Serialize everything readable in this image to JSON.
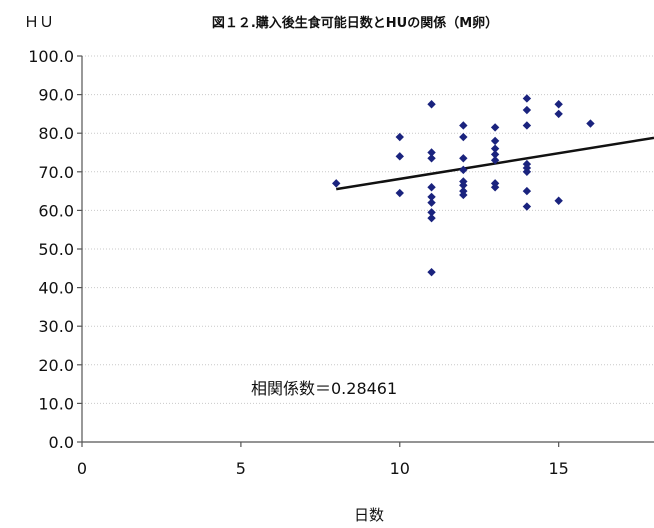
{
  "chart_data": {
    "type": "scatter",
    "title": "図１２.購入後生食可能日数とHUの関係（M卵）",
    "xlabel": "日数",
    "ylabel": "ＨＵ",
    "xlim": [
      0,
      18
    ],
    "ylim": [
      0,
      100
    ],
    "x_ticks": [
      "0",
      "5",
      "10",
      "15"
    ],
    "x_tick_values": [
      0,
      5,
      10,
      15
    ],
    "y_ticks": [
      "0.0",
      "10.0",
      "20.0",
      "30.0",
      "40.0",
      "50.0",
      "60.0",
      "70.0",
      "80.0",
      "90.0",
      "100.0"
    ],
    "y_tick_values": [
      0,
      10,
      20,
      30,
      40,
      50,
      60,
      70,
      80,
      90,
      100
    ],
    "grid": true,
    "point_color": "#1a237e",
    "annotation": "相関係数＝0.28461",
    "trendline": {
      "x": [
        8,
        18
      ],
      "y": [
        65.5,
        78.8
      ]
    },
    "points": [
      {
        "x": 8,
        "y": 67.0
      },
      {
        "x": 10,
        "y": 79.0
      },
      {
        "x": 10,
        "y": 74.0
      },
      {
        "x": 10,
        "y": 64.5
      },
      {
        "x": 11,
        "y": 87.5
      },
      {
        "x": 11,
        "y": 75.0
      },
      {
        "x": 11,
        "y": 73.5
      },
      {
        "x": 11,
        "y": 66.0
      },
      {
        "x": 11,
        "y": 63.5
      },
      {
        "x": 11,
        "y": 62.0
      },
      {
        "x": 11,
        "y": 59.5
      },
      {
        "x": 11,
        "y": 58.0
      },
      {
        "x": 11,
        "y": 44.0
      },
      {
        "x": 12,
        "y": 82.0
      },
      {
        "x": 12,
        "y": 79.0
      },
      {
        "x": 12,
        "y": 73.5
      },
      {
        "x": 12,
        "y": 70.5
      },
      {
        "x": 12,
        "y": 67.5
      },
      {
        "x": 12,
        "y": 66.5
      },
      {
        "x": 12,
        "y": 65.0
      },
      {
        "x": 12,
        "y": 64.0
      },
      {
        "x": 13,
        "y": 81.5
      },
      {
        "x": 13,
        "y": 78.0
      },
      {
        "x": 13,
        "y": 76.0
      },
      {
        "x": 13,
        "y": 74.5
      },
      {
        "x": 13,
        "y": 73.0
      },
      {
        "x": 13,
        "y": 67.0
      },
      {
        "x": 13,
        "y": 66.0
      },
      {
        "x": 14,
        "y": 89.0
      },
      {
        "x": 14,
        "y": 86.0
      },
      {
        "x": 14,
        "y": 82.0
      },
      {
        "x": 14,
        "y": 72.0
      },
      {
        "x": 14,
        "y": 71.0
      },
      {
        "x": 14,
        "y": 70.0
      },
      {
        "x": 14,
        "y": 65.0
      },
      {
        "x": 14,
        "y": 61.0
      },
      {
        "x": 15,
        "y": 87.5
      },
      {
        "x": 15,
        "y": 85.0
      },
      {
        "x": 15,
        "y": 62.5
      },
      {
        "x": 16,
        "y": 82.5
      }
    ]
  }
}
